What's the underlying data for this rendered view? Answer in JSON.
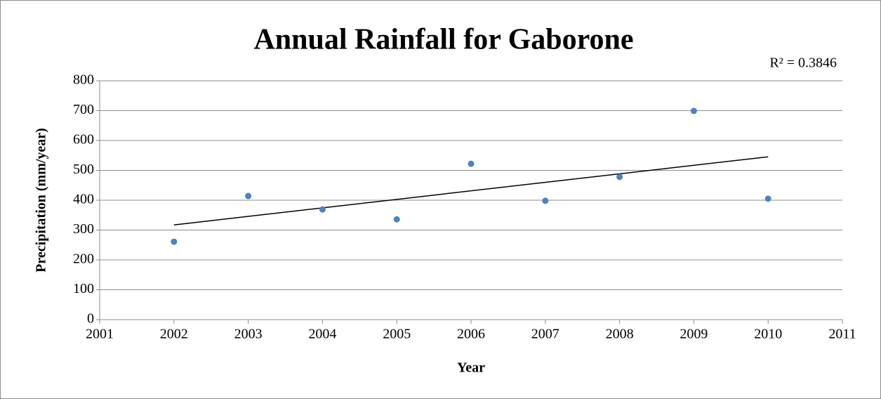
{
  "chart_data": {
    "type": "scatter",
    "title": "Annual Rainfall for Gaborone",
    "x_label": "Year",
    "y_label": "Precipitation (mm/year)",
    "annotation": "R² = 0.3846",
    "x": [
      2002,
      2003,
      2004,
      2005,
      2006,
      2007,
      2008,
      2009,
      2010
    ],
    "values": [
      261,
      414,
      369,
      336,
      522,
      398,
      478,
      699,
      405
    ],
    "color": "#4f81bd",
    "trendline": true,
    "xlim": [
      2001,
      2011
    ],
    "xticks": [
      2001,
      2002,
      2003,
      2004,
      2005,
      2006,
      2007,
      2008,
      2009,
      2010,
      2011
    ],
    "ylim": [
      0,
      800
    ],
    "yticks": [
      0,
      100,
      200,
      300,
      400,
      500,
      600,
      700,
      800
    ],
    "grid": true
  }
}
